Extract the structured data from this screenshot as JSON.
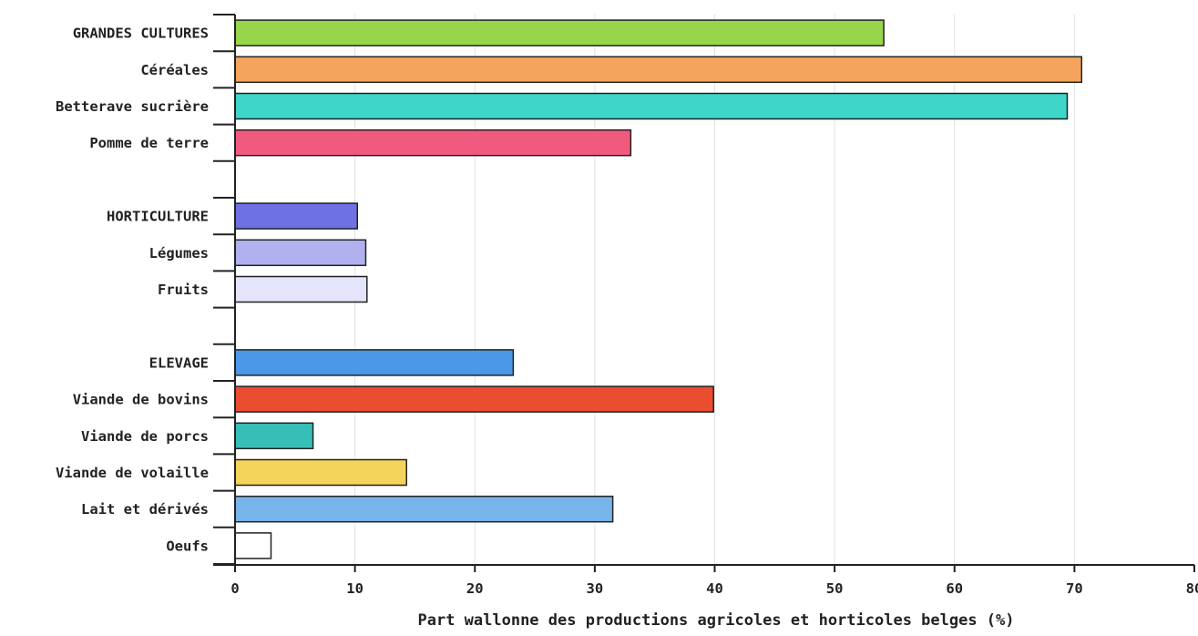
{
  "chart_data": {
    "type": "bar",
    "orientation": "horizontal",
    "title": "",
    "xlabel": "Part wallonne des productions agricoles et horticoles belges (%)",
    "ylabel": "",
    "xlim": [
      0,
      80
    ],
    "xticks": [
      "0",
      "10",
      "20",
      "30",
      "40",
      "50",
      "60",
      "70",
      "80"
    ],
    "grid": "vertical",
    "categories": [
      "GRANDES CULTURES",
      "Céréales",
      "Betterave sucrière",
      "Pomme de terre",
      "",
      "HORTICULTURE",
      "Légumes",
      "Fruits",
      "",
      "ELEVAGE",
      "Viande de bovins",
      "Viande de porcs",
      "Viande de volaille",
      "Lait et dérivés",
      "Oeufs"
    ],
    "values": [
      54.1,
      70.6,
      69.4,
      33.0,
      null,
      10.2,
      10.9,
      11.0,
      null,
      23.2,
      39.9,
      6.5,
      14.3,
      31.5,
      3.0
    ],
    "colors": [
      "#97d64a",
      "#f5a45d",
      "#3dd6c8",
      "#f05a7e",
      "",
      "#6e71e2",
      "#b1b1f0",
      "#e4e4fa",
      "",
      "#4a98e6",
      "#ea4d2f",
      "#37bfb7",
      "#f4d45b",
      "#77b4ea",
      "#ffffff"
    ]
  }
}
